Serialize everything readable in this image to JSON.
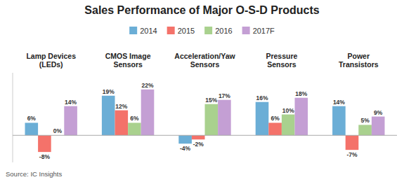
{
  "chart_data": {
    "type": "bar",
    "title": "Sales Performance of Major O-S-D Products",
    "source": "Source: IC Insights",
    "categories": [
      "Lamp Devices\n(LEDs)",
      "CMOS Image\nSensors",
      "Acceleration/Yaw\nSensors",
      "Pressure\nSensors",
      "Power\nTransistors"
    ],
    "series": [
      {
        "name": "2014",
        "color": "#6baed6",
        "values": [
          6,
          19,
          -4,
          16,
          14
        ],
        "value_labels": [
          "6%",
          "19%",
          "-4%",
          "16%",
          "14%"
        ]
      },
      {
        "name": "2015",
        "color": "#f4726a",
        "values": [
          -8,
          12,
          -2,
          6,
          -7
        ],
        "value_labels": [
          "-8%",
          "12%",
          "-2%",
          "6%",
          "-7%"
        ]
      },
      {
        "name": "2016",
        "color": "#a9d18e",
        "values": [
          0,
          6,
          15,
          10,
          5
        ],
        "value_labels": [
          "0%",
          "6%",
          "15%",
          "10%",
          "5%"
        ]
      },
      {
        "name": "2017F",
        "color": "#c49fd4",
        "values": [
          14,
          22,
          17,
          18,
          9
        ],
        "value_labels": [
          "14%",
          "22%",
          "17%",
          "18%",
          "9%"
        ]
      }
    ],
    "ylim": [
      -13,
      30
    ],
    "grid": false,
    "legend": "top",
    "data_labels": true,
    "tick_labels": "x"
  }
}
